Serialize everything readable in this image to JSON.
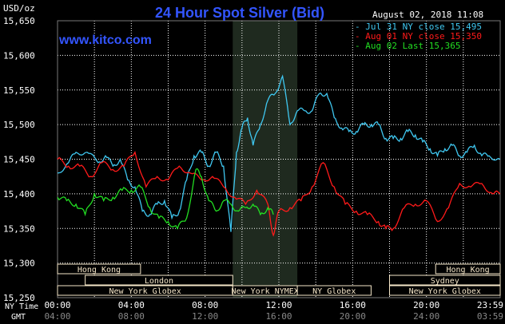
{
  "chart_data": {
    "type": "line",
    "title": "24 Hour Spot Silver (Bid)",
    "watermark": "www.kitco.com",
    "timestamp": "August 02, 2018 11:08",
    "ylabel": "USD/oz",
    "ylim": [
      15.25,
      15.65
    ],
    "yticks": [
      "15,650",
      "15,600",
      "15,550",
      "15,500",
      "15,450",
      "15,400",
      "15,350",
      "15,300",
      "15,250"
    ],
    "x_row_label": "NY Time",
    "x_row2_label": "GMT",
    "x_ny_ticks": [
      "00:00",
      "04:00",
      "08:00",
      "12:00",
      "16:00",
      "20:00",
      "23:59"
    ],
    "x_gmt_ticks": [
      "04:00",
      "08:00",
      "12:00",
      "16:00",
      "20:00",
      "24:00",
      "03:59"
    ],
    "grid": true,
    "legend_position": "top-right",
    "highlight": {
      "start_hour": 9.5,
      "end_hour": 13.0
    },
    "colors": {
      "background": "#000000",
      "grid": "#ffffff",
      "title": "#3355ff",
      "axis_text": "#ffffff",
      "session_bar": "#f5e6c8",
      "highlight": "#1f2a1f"
    },
    "series": [
      {
        "name": "Jul 31 NY close 15,495",
        "color": "#3fc7f0",
        "x": [
          0,
          0.6,
          1.0,
          1.6,
          2.2,
          2.6,
          3.0,
          3.4,
          3.8,
          4.2,
          4.6,
          5.0,
          5.4,
          5.8,
          6.2,
          6.6,
          7.0,
          7.4,
          7.8,
          8.2,
          8.6,
          9.0,
          9.4,
          9.7,
          10.0,
          10.3,
          10.6,
          11.0,
          11.4,
          11.8,
          12.2,
          12.6,
          13.0,
          13.4,
          13.8,
          14.2,
          14.6,
          15.0,
          15.4,
          15.8,
          16.2,
          16.6,
          17.0,
          17.4,
          17.8,
          18.2,
          18.6,
          19.0,
          19.4,
          19.8,
          20.2,
          20.6,
          21.0,
          21.4,
          21.8,
          22.2,
          22.6,
          23.0,
          23.4,
          23.99
        ],
        "y": [
          15.43,
          15.445,
          15.46,
          15.46,
          15.445,
          15.455,
          15.44,
          15.45,
          15.42,
          15.41,
          15.375,
          15.37,
          15.385,
          15.39,
          15.365,
          15.375,
          15.42,
          15.455,
          15.46,
          15.44,
          15.46,
          15.44,
          15.345,
          15.46,
          15.495,
          15.51,
          15.47,
          15.5,
          15.535,
          15.545,
          15.57,
          15.5,
          15.52,
          15.52,
          15.52,
          15.545,
          15.545,
          15.51,
          15.495,
          15.49,
          15.49,
          15.5,
          15.5,
          15.5,
          15.48,
          15.48,
          15.48,
          15.49,
          15.485,
          15.475,
          15.465,
          15.455,
          15.465,
          15.47,
          15.455,
          15.46,
          15.47,
          15.455,
          15.455,
          15.45
        ]
      },
      {
        "name": "Aug 01 NY close 15,350",
        "color": "#ff1a1a",
        "x": [
          0,
          0.6,
          1.2,
          1.8,
          2.4,
          3.0,
          3.6,
          4.2,
          4.8,
          5.4,
          6.0,
          6.6,
          7.2,
          7.8,
          8.4,
          9.0,
          9.6,
          10.2,
          10.8,
          11.4,
          11.7,
          12.0,
          12.6,
          13.2,
          13.8,
          14.4,
          15.0,
          15.6,
          16.2,
          16.8,
          17.4,
          17.8,
          18.2,
          18.8,
          19.4,
          20.0,
          20.6,
          21.2,
          21.8,
          22.4,
          23.0,
          23.6,
          23.99
        ],
        "y": [
          15.45,
          15.44,
          15.44,
          15.425,
          15.445,
          15.435,
          15.44,
          15.46,
          15.41,
          15.425,
          15.42,
          15.44,
          15.43,
          15.42,
          15.425,
          15.41,
          15.395,
          15.385,
          15.405,
          15.385,
          15.34,
          15.375,
          15.38,
          15.39,
          15.41,
          15.445,
          15.41,
          15.385,
          15.375,
          15.37,
          15.36,
          15.35,
          15.35,
          15.38,
          15.385,
          15.39,
          15.36,
          15.38,
          15.415,
          15.41,
          15.415,
          15.4,
          15.4
        ]
      },
      {
        "name": "Aug 02 Last 15,365",
        "color": "#22dd22",
        "x": [
          0,
          0.5,
          1.0,
          1.5,
          2.0,
          2.5,
          3.0,
          3.5,
          4.0,
          4.5,
          5.0,
          5.5,
          6.0,
          6.5,
          7.0,
          7.5,
          7.8,
          8.2,
          8.6,
          9.0,
          9.4,
          9.8,
          10.2,
          10.6,
          11.0,
          11.4,
          11.7
        ],
        "y": [
          15.395,
          15.39,
          15.385,
          15.37,
          15.4,
          15.39,
          15.395,
          15.405,
          15.405,
          15.41,
          15.38,
          15.365,
          15.36,
          15.35,
          15.365,
          15.435,
          15.425,
          15.39,
          15.375,
          15.39,
          15.385,
          15.375,
          15.38,
          15.385,
          15.37,
          15.38,
          15.37
        ]
      }
    ],
    "sessions": [
      {
        "label": "Hong Kong",
        "row": 0,
        "start": 0,
        "end": 4.5
      },
      {
        "label": "London",
        "row": 1,
        "start": 1.5,
        "end": 9.5
      },
      {
        "label": "New York Globex",
        "row": 2,
        "start": 0,
        "end": 9.5
      },
      {
        "label": "New York NYMEX",
        "row": 2,
        "start": 9.5,
        "end": 13.0
      },
      {
        "label": "NY Globex",
        "row": 2,
        "start": 13.0,
        "end": 17.0
      },
      {
        "label": "Hong Kong",
        "row": 0,
        "start": 20.5,
        "end": 24
      },
      {
        "label": "Sydney",
        "row": 1,
        "start": 18.0,
        "end": 24
      },
      {
        "label": "New York Globex",
        "row": 2,
        "start": 18.0,
        "end": 24
      }
    ]
  }
}
